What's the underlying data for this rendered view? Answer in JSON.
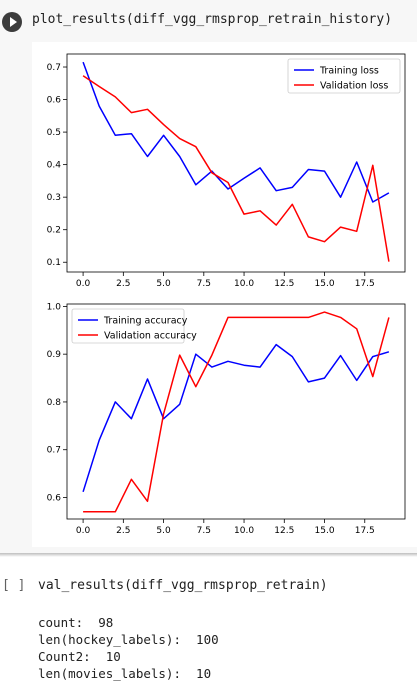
{
  "cells": [
    {
      "code": "plot_results(diff_vgg_rmsprop_retrain_history)",
      "run_icon": "play-icon"
    },
    {
      "bracket": "[ ]",
      "code": "val_results(diff_vgg_rmsprop_retrain)",
      "output_lines": [
        "count:  98",
        "len(hockey_labels):  100",
        "Count2:  10",
        "len(movies_labels):  10"
      ]
    }
  ],
  "colors": {
    "training": "#0000ff",
    "validation": "#ff0000"
  },
  "chart_data": [
    {
      "type": "line",
      "title": "",
      "xlabel": "",
      "ylabel": "",
      "xlim": [
        -1,
        20
      ],
      "ylim": [
        0.07,
        0.74
      ],
      "xticks": [
        "0.0",
        "2.5",
        "5.0",
        "7.5",
        "10.0",
        "12.5",
        "15.0",
        "17.5"
      ],
      "yticks": [
        "0.1",
        "0.2",
        "0.3",
        "0.4",
        "0.5",
        "0.6",
        "0.7"
      ],
      "legend_position": "top-right",
      "x": [
        0,
        1,
        2,
        3,
        4,
        5,
        6,
        7,
        8,
        9,
        10,
        11,
        12,
        13,
        14,
        15,
        16,
        17,
        18,
        19
      ],
      "series": [
        {
          "name": "Training loss",
          "color": "#0000ff",
          "values": [
            0.715,
            0.58,
            0.49,
            0.495,
            0.425,
            0.49,
            0.425,
            0.338,
            0.38,
            0.325,
            0.358,
            0.39,
            0.32,
            0.33,
            0.385,
            0.38,
            0.3,
            0.408,
            0.285,
            0.313
          ]
        },
        {
          "name": "Validation loss",
          "color": "#ff0000",
          "values": [
            0.673,
            0.64,
            0.608,
            0.56,
            0.57,
            0.523,
            0.48,
            0.455,
            0.375,
            0.345,
            0.248,
            0.258,
            0.214,
            0.278,
            0.178,
            0.163,
            0.208,
            0.195,
            0.398,
            0.102
          ]
        }
      ]
    },
    {
      "type": "line",
      "title": "",
      "xlabel": "",
      "ylabel": "",
      "xlim": [
        -1,
        20
      ],
      "ylim": [
        0.555,
        1.005
      ],
      "xticks": [
        "0.0",
        "2.5",
        "5.0",
        "7.5",
        "10.0",
        "12.5",
        "15.0",
        "17.5"
      ],
      "yticks": [
        "0.6",
        "0.7",
        "0.8",
        "0.9",
        "1.0"
      ],
      "legend_position": "top-left",
      "x": [
        0,
        1,
        2,
        3,
        4,
        5,
        6,
        7,
        8,
        9,
        10,
        11,
        12,
        13,
        14,
        15,
        16,
        17,
        18,
        19
      ],
      "series": [
        {
          "name": "Training accuracy",
          "color": "#0000ff",
          "values": [
            0.612,
            0.72,
            0.8,
            0.765,
            0.848,
            0.765,
            0.795,
            0.9,
            0.873,
            0.885,
            0.877,
            0.873,
            0.92,
            0.895,
            0.842,
            0.85,
            0.897,
            0.845,
            0.895,
            0.905
          ]
        },
        {
          "name": "Validation accuracy",
          "color": "#ff0000",
          "values": [
            0.57,
            0.57,
            0.57,
            0.638,
            0.592,
            0.775,
            0.898,
            0.832,
            0.898,
            0.977,
            0.977,
            0.977,
            0.977,
            0.977,
            0.977,
            0.988,
            0.977,
            0.953,
            0.853,
            0.977
          ]
        }
      ]
    }
  ]
}
